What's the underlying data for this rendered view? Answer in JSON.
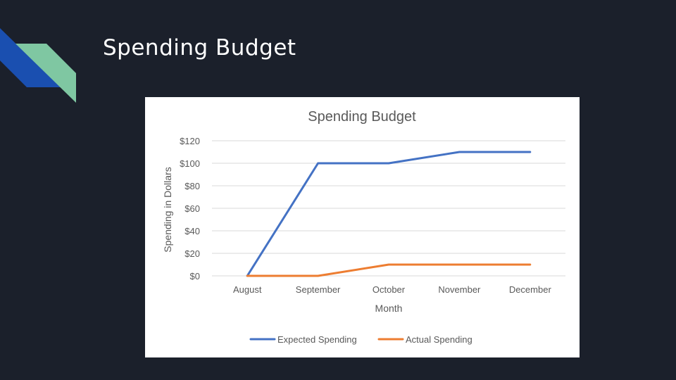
{
  "slide": {
    "title": "Spending Budget"
  },
  "colors": {
    "background": "#1b202b",
    "deco_blue": "#1a4fb0",
    "deco_green": "#7fc7a2"
  },
  "chart_data": {
    "type": "line",
    "title": "Spending Budget",
    "xlabel": "Month",
    "ylabel": "Spending in Dollars",
    "categories": [
      "August",
      "September",
      "October",
      "November",
      "December"
    ],
    "ylim": [
      0,
      120
    ],
    "yticks": [
      "$0",
      "$20",
      "$40",
      "$60",
      "$80",
      "$100",
      "$120"
    ],
    "grid": true,
    "legend_position": "bottom",
    "series": [
      {
        "name": "Expected Spending",
        "color": "#4472c4",
        "values": [
          0,
          100,
          100,
          110,
          110
        ]
      },
      {
        "name": "Actual Spending",
        "color": "#ed7d31",
        "values": [
          0,
          0,
          10,
          10,
          10
        ]
      }
    ]
  }
}
